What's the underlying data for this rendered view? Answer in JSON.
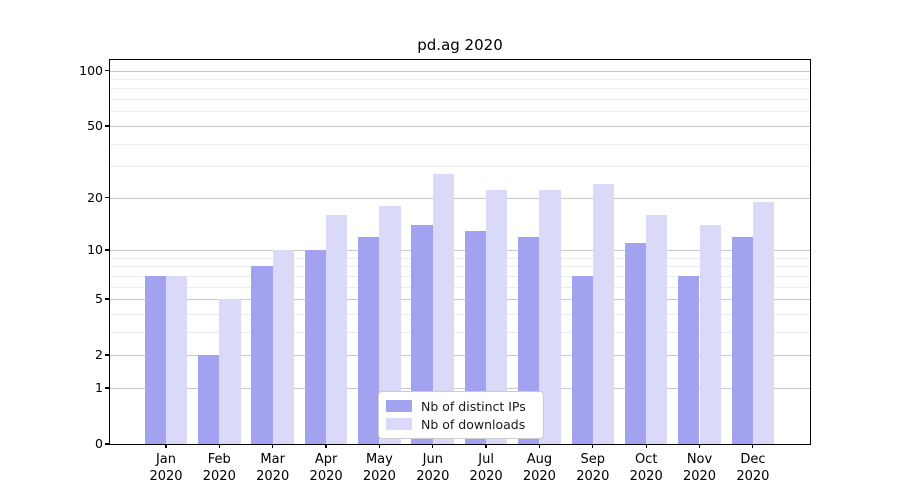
{
  "title": "pd.ag 2020",
  "chart_data": {
    "type": "bar",
    "title": "pd.ag 2020",
    "categories": [
      "Jan",
      "Feb",
      "Mar",
      "Apr",
      "May",
      "Jun",
      "Jul",
      "Aug",
      "Sep",
      "Oct",
      "Nov",
      "Dec"
    ],
    "x_tick_second_line": "2020",
    "series": [
      {
        "name": "Nb of distinct IPs",
        "color": "#a2a2f0",
        "values": [
          7,
          2,
          8,
          10,
          12,
          14,
          13,
          12,
          7,
          11,
          7,
          12
        ]
      },
      {
        "name": "Nb of downloads",
        "color": "#dadaf8",
        "values": [
          7,
          5,
          10,
          16,
          18,
          27,
          22,
          22,
          24,
          16,
          14,
          19
        ]
      }
    ],
    "xlabel": "",
    "ylabel": "",
    "yscale": "log10(value+1)",
    "y_major_ticks": [
      0,
      1,
      2,
      5,
      10,
      20,
      50,
      100
    ],
    "y_minor_gridlines": [
      3,
      4,
      6,
      7,
      8,
      9,
      30,
      40,
      60,
      70,
      80,
      90
    ],
    "ylim": [
      0,
      115
    ],
    "grid": true,
    "legend_position": "lower center"
  },
  "colors": {
    "grid_major": "#c9c9c9",
    "grid_minor": "#ebebeb",
    "axis": "#000000",
    "background": "#ffffff"
  }
}
